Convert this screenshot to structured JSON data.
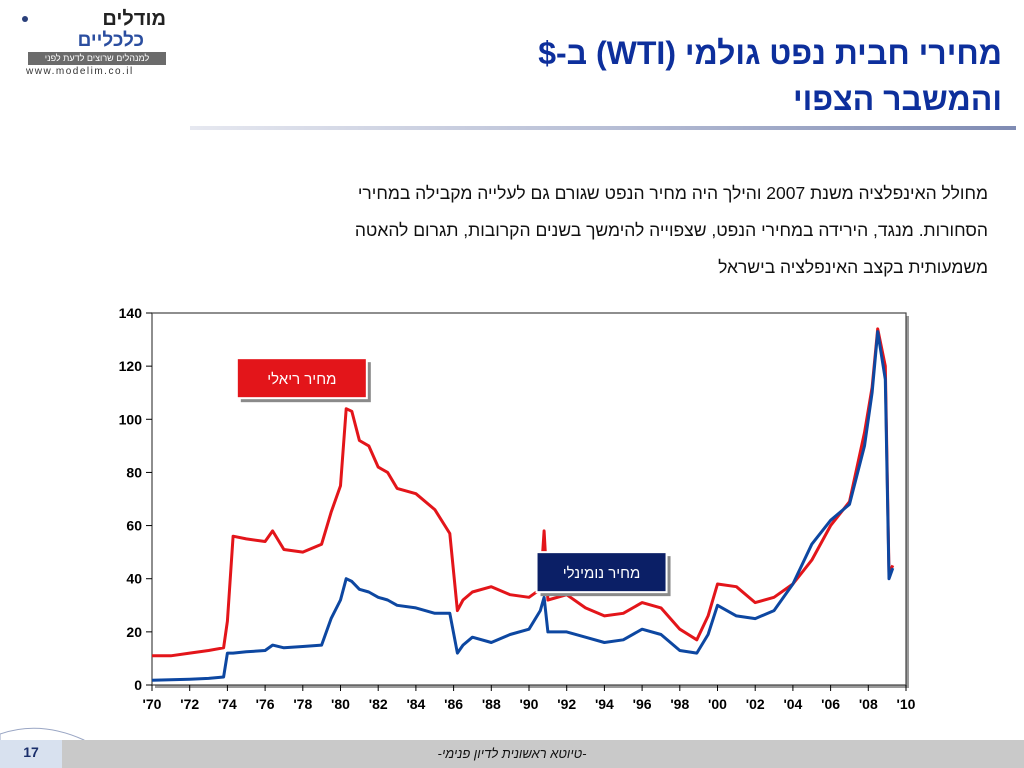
{
  "logo": {
    "name_top": "מודלים",
    "name_bottom": "כלכליים",
    "tagline": "למנהלים שרוצים לדעת לפני",
    "url": "www.modelim.co.il"
  },
  "title": {
    "line1": "מחירי חבית נפט גולמי (WTI) ב-$",
    "line2": "והמשבר הצפוי"
  },
  "description": [
    "מחולל האינפלציה משנת 2007 והילך היה מחיר הנפט שגורם גם לעלייה מקבילה במחירי",
    "הסחורות. מנגד, הירידה במחירי הנפט, שצפוייה להימשך בשנים הקרובות,  תגרום להאטה",
    "משמעותית בקצב האינפלציה בישראל"
  ],
  "footer": {
    "page_number": "17",
    "note": "-טיוטא ראשונית לדיון פנימי-"
  },
  "colors": {
    "title": "#0d2f9c",
    "real_series": "#e3151a",
    "nominal_series": "#0d47a1",
    "real_label_bg": "#e3151a",
    "nominal_label_bg": "#0b1f66"
  },
  "chart_data": {
    "type": "line",
    "ylim": [
      0,
      140
    ],
    "yticks": [
      0,
      20,
      40,
      60,
      80,
      100,
      120,
      140
    ],
    "xlim": [
      1970,
      2010
    ],
    "xtick_labels": [
      "'70",
      "'72",
      "'74",
      "'76",
      "'78",
      "'80",
      "'82",
      "'84",
      "'86",
      "'88",
      "'90",
      "'92",
      "'94",
      "'96",
      "'98",
      "'00",
      "'02",
      "'04",
      "'06",
      "'08",
      "'10"
    ],
    "grid": false,
    "series": [
      {
        "name": "מחיר ריאלי",
        "x": [
          1970,
          1971,
          1972,
          1973,
          1973.8,
          1974,
          1974.3,
          1975,
          1976,
          1976.4,
          1977,
          1978,
          1979,
          1979.5,
          1980,
          1980.3,
          1980.6,
          1981,
          1981.5,
          1982,
          1982.5,
          1983,
          1984,
          1985,
          1985.8,
          1986.2,
          1986.5,
          1987,
          1988,
          1989,
          1990,
          1990.6,
          1990.8,
          1991,
          1992,
          1993,
          1994,
          1995,
          1996,
          1997,
          1998,
          1998.9,
          1999.5,
          2000,
          2001,
          2002,
          2003,
          2004,
          2005,
          2006,
          2007,
          2007.8,
          2008.2,
          2008.5,
          2008.9,
          2009.1,
          2009.3
        ],
        "y": [
          11,
          11,
          12,
          13,
          14,
          24,
          56,
          55,
          54,
          58,
          51,
          50,
          53,
          65,
          75,
          104,
          103,
          92,
          90,
          82,
          80,
          74,
          72,
          66,
          57,
          28,
          32,
          35,
          37,
          34,
          33,
          36,
          58,
          32,
          34,
          29,
          26,
          27,
          31,
          29,
          21,
          17,
          26,
          38,
          37,
          31,
          33,
          38,
          47,
          60,
          69,
          95,
          112,
          134,
          120,
          42,
          45
        ]
      },
      {
        "name": "מחיר נומינלי",
        "x": [
          1970,
          1971,
          1972,
          1973,
          1973.8,
          1974,
          1974.3,
          1975,
          1976,
          1976.4,
          1977,
          1978,
          1979,
          1979.5,
          1980,
          1980.3,
          1980.6,
          1981,
          1981.5,
          1982,
          1982.5,
          1983,
          1984,
          1985,
          1985.8,
          1986.2,
          1986.5,
          1987,
          1988,
          1989,
          1990,
          1990.6,
          1990.8,
          1991,
          1992,
          1993,
          1994,
          1995,
          1996,
          1997,
          1998,
          1998.9,
          1999.5,
          2000,
          2001,
          2002,
          2003,
          2004,
          2005,
          2006,
          2007,
          2007.8,
          2008.2,
          2008.5,
          2008.9,
          2009.1,
          2009.3
        ],
        "y": [
          1.8,
          2,
          2.2,
          2.5,
          3,
          12,
          12,
          12.5,
          13,
          15,
          14,
          14.5,
          15,
          25,
          32,
          40,
          39,
          36,
          35,
          33,
          32,
          30,
          29,
          27,
          27,
          12,
          15,
          18,
          16,
          19,
          21,
          28,
          33,
          20,
          20,
          18,
          16,
          17,
          21,
          19,
          13,
          12,
          19,
          30,
          26,
          25,
          28,
          38,
          53,
          62,
          68,
          90,
          110,
          133,
          115,
          40,
          44
        ]
      }
    ],
    "annotations": [
      {
        "text": "מחיר ריאלי",
        "series": "מחיר ריאלי"
      },
      {
        "text": "מחיר נומינלי",
        "series": "מחיר נומינלי"
      }
    ]
  }
}
